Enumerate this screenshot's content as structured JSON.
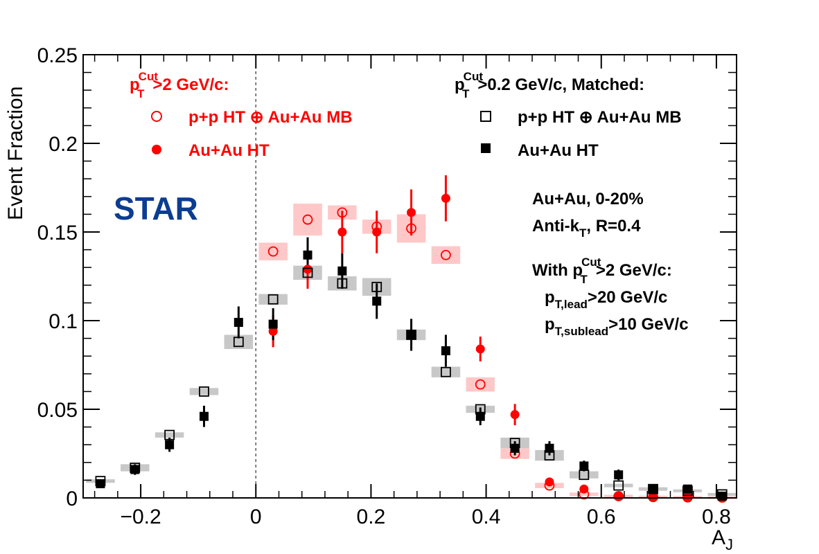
{
  "chart_data": {
    "type": "scatter",
    "title": "",
    "logo": "STAR",
    "xlabel": "A",
    "xlabel_sub": "J",
    "ylabel": "Event Fraction",
    "xlim": [
      -0.3,
      0.835
    ],
    "ylim": [
      0,
      0.25
    ],
    "x_ticks": [
      -0.2,
      0,
      0.2,
      0.4,
      0.6,
      0.8
    ],
    "x_tick_labels": [
      "−0.2",
      "0",
      "0.2",
      "0.4",
      "0.6",
      "0.8"
    ],
    "y_ticks": [
      0,
      0.05,
      0.1,
      0.15,
      0.2,
      0.25
    ],
    "y_tick_labels": [
      "0",
      "0.05",
      "0.1",
      "0.15",
      "0.2",
      "0.25"
    ],
    "grid": false,
    "reference_line_x": 0,
    "colors": {
      "red": "#ff0000",
      "red_band": "#ffc8c8",
      "black": "#000000",
      "gray_band": "#c8c8c8",
      "star_blue": "#0b3d91"
    },
    "legend_left": {
      "header_p": "p",
      "header_sup": "Cut",
      "header_sub": "T",
      "header_rest": ">2 GeV/c:",
      "entries": [
        "p+p HT ⊕ Au+Au MB",
        "Au+Au HT"
      ]
    },
    "legend_right": {
      "header_p": "p",
      "header_sup": "Cut",
      "header_sub": "T",
      "header_rest": ">0.2 GeV/c, Matched:",
      "entries": [
        "p+p HT ⊕ Au+Au MB",
        "Au+Au HT"
      ]
    },
    "annotations": {
      "line1": "Au+Au, 0-20%",
      "line2_main": "Anti-k",
      "line2_sub": "T",
      "line2_rest": ", R=0.4",
      "line3_main": "With p",
      "line3_sup": "Cut",
      "line3_sub": "T",
      "line3_rest": ">2 GeV/c:",
      "line4_main": "p",
      "line4_sub": "T,lead",
      "line4_rest": ">20 GeV/c",
      "line5_main": "p",
      "line5_sub": "T,sublead",
      "line5_rest": ">10 GeV/c"
    },
    "series": [
      {
        "name": "p+p HT ⊕ Au+Au MB",
        "selection": "pT Cut > 2 GeV/c",
        "marker": "open-circle",
        "color": "#ff0000",
        "band_color": "#ffc8c8",
        "x": [
          0.03,
          0.09,
          0.15,
          0.21,
          0.27,
          0.33,
          0.39,
          0.45,
          0.51,
          0.57,
          0.63,
          0.69,
          0.75,
          0.81
        ],
        "y": [
          0.139,
          0.157,
          0.161,
          0.153,
          0.152,
          0.137,
          0.064,
          0.025,
          0.007,
          0.002,
          0.001,
          0.0005,
          0.0003,
          0.0002
        ],
        "sys": [
          0.005,
          0.009,
          0.004,
          0.004,
          0.008,
          0.005,
          0.004,
          0.003,
          0.0015,
          0.001,
          0.0005,
          0.0004,
          0.0003,
          0.0002
        ],
        "stat": [
          0,
          0,
          0,
          0,
          0,
          0,
          0,
          0,
          0,
          0,
          0,
          0,
          0,
          0
        ]
      },
      {
        "name": "Au+Au HT",
        "selection": "pT Cut > 2 GeV/c",
        "marker": "filled-circle",
        "color": "#ff0000",
        "x": [
          0.03,
          0.09,
          0.15,
          0.21,
          0.27,
          0.33,
          0.39,
          0.45,
          0.51,
          0.57,
          0.63,
          0.69,
          0.75,
          0.81
        ],
        "y": [
          0.094,
          0.129,
          0.15,
          0.15,
          0.161,
          0.169,
          0.084,
          0.047,
          0.009,
          0.005,
          0.001,
          0.0005,
          0.0005,
          0.0003
        ],
        "stat": [
          0.009,
          0.011,
          0.012,
          0.012,
          0.013,
          0.013,
          0.007,
          0.006,
          0.002,
          0.001,
          0.001,
          0.0005,
          0.0005,
          0.0003
        ],
        "sys": [
          0,
          0,
          0,
          0,
          0,
          0,
          0,
          0,
          0,
          0,
          0,
          0,
          0,
          0
        ]
      },
      {
        "name": "p+p HT ⊕ Au+Au MB",
        "selection": "pT Cut > 0.2 GeV/c, Matched",
        "marker": "open-square",
        "color": "#000000",
        "band_color": "#c8c8c8",
        "x": [
          -0.27,
          -0.21,
          -0.15,
          -0.09,
          -0.03,
          0.03,
          0.09,
          0.15,
          0.21,
          0.27,
          0.33,
          0.39,
          0.45,
          0.51,
          0.57,
          0.63,
          0.69,
          0.75,
          0.81
        ],
        "y": [
          0.0095,
          0.017,
          0.0355,
          0.06,
          0.088,
          0.112,
          0.127,
          0.121,
          0.119,
          0.092,
          0.071,
          0.05,
          0.031,
          0.024,
          0.013,
          0.007,
          0.005,
          0.004,
          0.002
        ],
        "sys": [
          0.001,
          0.002,
          0.0015,
          0.002,
          0.004,
          0.003,
          0.004,
          0.004,
          0.005,
          0.003,
          0.003,
          0.002,
          0.003,
          0.003,
          0.002,
          0.001,
          0.001,
          0.0008,
          0.0008
        ],
        "stat": [
          0,
          0,
          0,
          0,
          0,
          0,
          0,
          0,
          0,
          0,
          0,
          0,
          0,
          0,
          0,
          0,
          0,
          0,
          0
        ]
      },
      {
        "name": "Au+Au HT",
        "selection": "pT Cut > 0.2 GeV/c, Matched",
        "marker": "filled-square",
        "color": "#000000",
        "x": [
          -0.27,
          -0.21,
          -0.15,
          -0.09,
          -0.03,
          0.03,
          0.09,
          0.15,
          0.21,
          0.27,
          0.33,
          0.39,
          0.45,
          0.51,
          0.57,
          0.63,
          0.69,
          0.75,
          0.81
        ],
        "y": [
          0.008,
          0.016,
          0.03,
          0.046,
          0.099,
          0.098,
          0.137,
          0.128,
          0.111,
          0.092,
          0.083,
          0.046,
          0.028,
          0.028,
          0.018,
          0.013,
          0.005,
          0.005,
          0.001
        ],
        "stat": [
          0.002,
          0.003,
          0.004,
          0.006,
          0.009,
          0.009,
          0.01,
          0.01,
          0.01,
          0.009,
          0.009,
          0.005,
          0.004,
          0.004,
          0.003,
          0.003,
          0.002,
          0.002,
          0.001
        ],
        "sys": [
          0,
          0,
          0,
          0,
          0,
          0,
          0,
          0,
          0,
          0,
          0,
          0,
          0,
          0,
          0,
          0,
          0,
          0,
          0
        ]
      }
    ]
  }
}
